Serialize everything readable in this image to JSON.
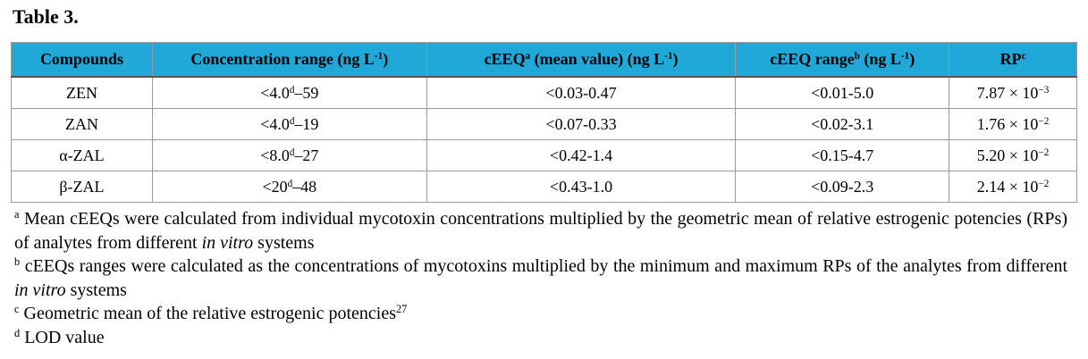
{
  "title": "Table 3.",
  "table": {
    "header": [
      [
        {
          "text": "Compounds"
        }
      ],
      [
        {
          "text": "Concentration range (ng L"
        },
        {
          "text": "-1",
          "style": "sup"
        },
        {
          "text": ")"
        }
      ],
      [
        {
          "text": "cEEQ"
        },
        {
          "text": "a",
          "style": "sup"
        },
        {
          "text": " (mean value) (ng L"
        },
        {
          "text": "-1",
          "style": "sup"
        },
        {
          "text": ")"
        }
      ],
      [
        {
          "text": "cEEQ range"
        },
        {
          "text": "b",
          "style": "sup"
        },
        {
          "text": " (ng L"
        },
        {
          "text": "-1",
          "style": "sup"
        },
        {
          "text": ")"
        }
      ],
      [
        {
          "text": "RP"
        },
        {
          "text": "c",
          "style": "sup"
        }
      ]
    ],
    "rows": [
      [
        [
          {
            "text": "ZEN"
          }
        ],
        [
          {
            "text": "<4.0"
          },
          {
            "text": "d",
            "style": "sup"
          },
          {
            "text": "–59"
          }
        ],
        [
          {
            "text": "<0.03-0.47"
          }
        ],
        [
          {
            "text": "<0.01-5.0"
          }
        ],
        [
          {
            "text": "7.87 × 10"
          },
          {
            "text": "−3",
            "style": "sup"
          }
        ]
      ],
      [
        [
          {
            "text": "ZAN"
          }
        ],
        [
          {
            "text": "<4.0"
          },
          {
            "text": "d",
            "style": "sup"
          },
          {
            "text": "–19"
          }
        ],
        [
          {
            "text": "<0.07-0.33"
          }
        ],
        [
          {
            "text": "<0.02-3.1"
          }
        ],
        [
          {
            "text": "1.76 × 10"
          },
          {
            "text": "−2",
            "style": "sup"
          }
        ]
      ],
      [
        [
          {
            "text": "α-ZAL"
          }
        ],
        [
          {
            "text": "<8.0"
          },
          {
            "text": "d",
            "style": "sup"
          },
          {
            "text": "–27"
          }
        ],
        [
          {
            "text": "<0.42-1.4"
          }
        ],
        [
          {
            "text": "<0.15-4.7"
          }
        ],
        [
          {
            "text": "5.20 × 10"
          },
          {
            "text": "−2",
            "style": "sup"
          }
        ]
      ],
      [
        [
          {
            "text": "β-ZAL"
          }
        ],
        [
          {
            "text": "<20"
          },
          {
            "text": "d",
            "style": "sup"
          },
          {
            "text": "–48"
          }
        ],
        [
          {
            "text": "<0.43-1.0"
          }
        ],
        [
          {
            "text": "<0.09-2.3"
          }
        ],
        [
          {
            "text": "2.14 × 10"
          },
          {
            "text": "−2",
            "style": "sup"
          }
        ]
      ]
    ]
  },
  "footnotes": [
    [
      {
        "text": "a",
        "style": "sup"
      },
      {
        "text": " Mean cEEQs were calculated from individual mycotoxin concentrations multiplied by the geometric mean of relative estrogenic potencies (RPs) of analytes from different "
      },
      {
        "text": "in vitro",
        "style": "italic"
      },
      {
        "text": " systems"
      }
    ],
    [
      {
        "text": "b",
        "style": "sup"
      },
      {
        "text": " cEEQs ranges were calculated as the concentrations of mycotoxins multiplied by the minimum and maximum RPs of the analytes from different "
      },
      {
        "text": "in vitro",
        "style": "italic"
      },
      {
        "text": " systems"
      }
    ],
    [
      {
        "text": "c",
        "style": "sup"
      },
      {
        "text": " Geometric mean of the relative estrogenic potencies"
      },
      {
        "text": "27",
        "style": "sup"
      }
    ],
    [
      {
        "text": "d",
        "style": "sup"
      },
      {
        "text": " LOD value"
      }
    ]
  ]
}
